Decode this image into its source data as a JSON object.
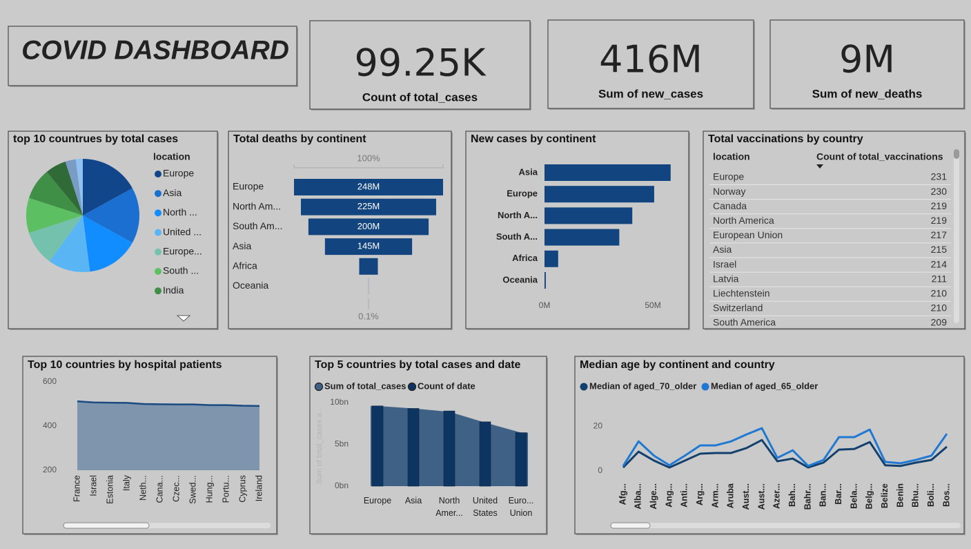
{
  "title": "COVID DASHBOARD",
  "kpis": [
    {
      "value": "99.25K",
      "label": "Count of total_cases"
    },
    {
      "value": "416M",
      "label": "Sum of new_cases"
    },
    {
      "value": "9M",
      "label": "Sum of new_deaths"
    }
  ],
  "table": {
    "title": "Total vaccinations by country",
    "columns": [
      "location",
      "Count of total_vaccinations"
    ],
    "rows": [
      [
        "Europe",
        231
      ],
      [
        "Norway",
        230
      ],
      [
        "Canada",
        219
      ],
      [
        "North America",
        219
      ],
      [
        "European Union",
        217
      ],
      [
        "Asia",
        215
      ],
      [
        "Israel",
        214
      ],
      [
        "Latvia",
        211
      ],
      [
        "Liechtenstein",
        210
      ],
      [
        "Switzerland",
        210
      ],
      [
        "South America",
        209
      ]
    ]
  },
  "chart_data": [
    {
      "type": "pie",
      "title": "top 10 countrues by total cases",
      "legend_title": "location",
      "categories": [
        "Europe",
        "Asia",
        "North ...",
        "United ...",
        "Europe...",
        "South ...",
        "India",
        null,
        null,
        null
      ],
      "values": [
        17,
        16,
        15,
        12,
        10,
        10,
        9,
        6,
        3,
        2
      ],
      "colors": [
        "#12468a",
        "#1a6fd0",
        "#118dff",
        "#5ab5f5",
        "#74c2ad",
        "#5cc063",
        "#3f8f47",
        "#2f6a37",
        "#7a9cc4",
        "#8fc2f2"
      ]
    },
    {
      "type": "funnel",
      "title": "Total deaths by continent",
      "categories": [
        "Europe",
        "North Am...",
        "South Am...",
        "Asia",
        "Africa",
        "Oceania"
      ],
      "values": [
        248,
        225,
        200,
        145,
        31,
        0.25
      ],
      "value_labels": [
        "248M",
        "225M",
        "200M",
        "145M",
        null,
        null
      ],
      "color": "#12457f",
      "top_label": "100%",
      "bottom_label": "0.1%"
    },
    {
      "type": "hbar",
      "title": "New cases by continent",
      "categories": [
        "Asia",
        "Europe",
        "North A...",
        "South A...",
        "Africa",
        "Oceania"
      ],
      "values": [
        58.2,
        50.6,
        40.5,
        34.5,
        6.3,
        0.6
      ],
      "color": "#12457f",
      "xlim": [
        0,
        64
      ],
      "xticks": [
        {
          "value": 0,
          "label": "0M"
        },
        {
          "value": 50,
          "label": "50M"
        }
      ]
    },
    {
      "type": "area",
      "title": "Top 10 countries by hospital patients",
      "categories": [
        "France",
        "Israel",
        "Estonia",
        "Italy",
        "Neth...",
        "Cana...",
        "Czec...",
        "Swed...",
        "Hung...",
        "Portu...",
        "Cyprus",
        "Ireland"
      ],
      "values": [
        512,
        507,
        506,
        505,
        500,
        499,
        498,
        498,
        495,
        495,
        492,
        491
      ],
      "color": "#7f94ad",
      "line_color": "#1a4a80",
      "ylim": [
        200,
        600
      ],
      "yticks": [
        200,
        400,
        600
      ]
    },
    {
      "type": "combo",
      "title": "Top 5 countries by total cases and date",
      "categories": [
        "Europe",
        "Asia",
        "North Amer...",
        "United States",
        "Euro... Union"
      ],
      "series": [
        {
          "name": "Sum of total_cases",
          "kind": "area",
          "color": "#3f6185",
          "values": [
            9.6,
            9.3,
            8.9,
            7.6,
            6.4
          ]
        },
        {
          "name": "Count of date",
          "kind": "bar",
          "color": "#0d3561",
          "values": [
            9.6,
            9.3,
            9.0,
            7.7,
            6.4
          ]
        }
      ],
      "y_label": "Sum of total_cases a...",
      "ylim": [
        0,
        10
      ],
      "yticks": [
        {
          "value": 0,
          "label": "0bn"
        },
        {
          "value": 5,
          "label": "5bn"
        },
        {
          "value": 10,
          "label": "10bn"
        }
      ]
    },
    {
      "type": "line",
      "title": "Median age by continent and country",
      "categories": [
        "Afg...",
        "Alba...",
        "Alge...",
        "Ang...",
        "Anti...",
        "Arg...",
        "Arm...",
        "Aruba",
        "Aust...",
        "Aust...",
        "Azer...",
        "Bah...",
        "Bahr...",
        "Ban...",
        "Bar...",
        "Bela...",
        "Belg...",
        "Belize",
        "Benin",
        "Bhu...",
        "Boli...",
        "Bos..."
      ],
      "series": [
        {
          "name": "Median of aged_70_older",
          "color": "#12406e",
          "values": [
            1.5,
            8.6,
            4.6,
            1.5,
            4.6,
            7.7,
            8.0,
            8.0,
            10.2,
            13.8,
            4.3,
            5.5,
            1.5,
            3.7,
            9.5,
            9.8,
            12.9,
            2.5,
            2.2,
            3.7,
            4.9,
            10.8
          ]
        },
        {
          "name": "Median of aged_65_older",
          "color": "#1f78d1",
          "values": [
            2.2,
            13.2,
            6.8,
            2.5,
            6.8,
            11.4,
            11.4,
            13.2,
            16.3,
            19.1,
            5.8,
            9.2,
            2.2,
            4.9,
            15.1,
            15.1,
            18.5,
            4.0,
            3.4,
            4.9,
            6.8,
            16.6
          ]
        }
      ],
      "ylim": [
        -5,
        25
      ],
      "yticks": [
        0,
        20
      ]
    }
  ]
}
